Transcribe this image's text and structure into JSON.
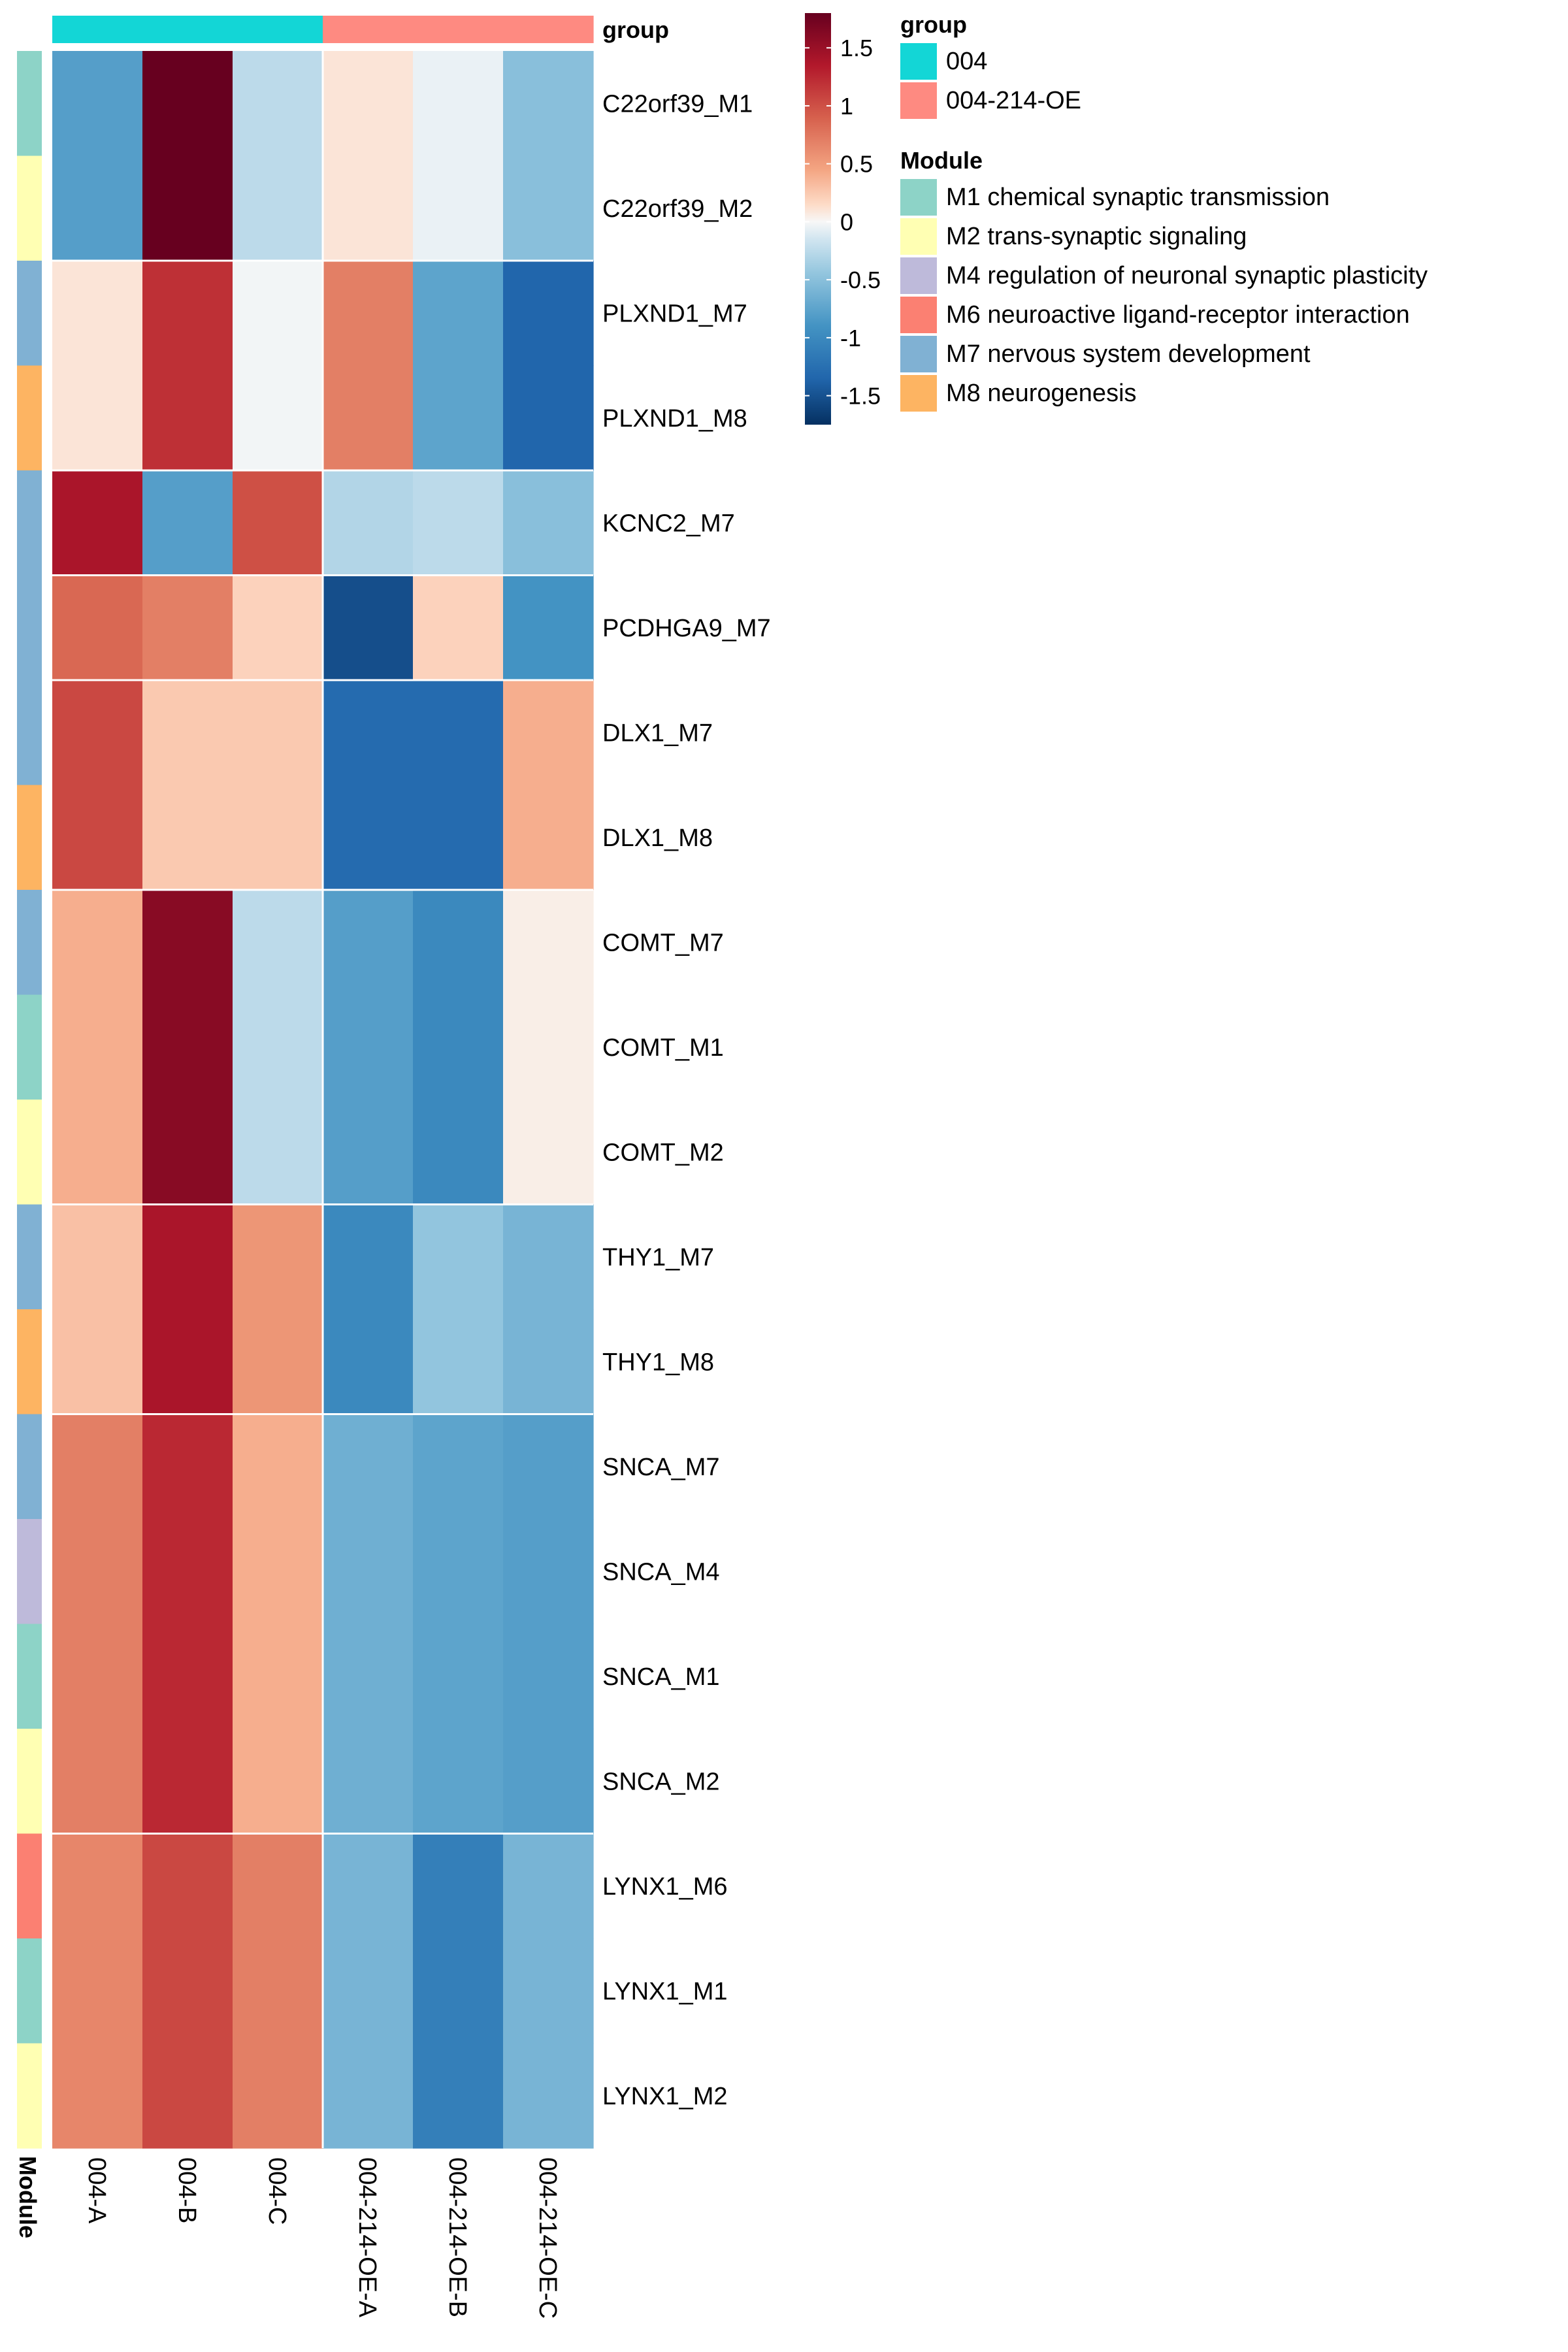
{
  "chart_data": {
    "type": "heatmap",
    "title": "",
    "color_scale": {
      "min": -1.75,
      "max": 1.8,
      "ticks": [
        1.5,
        1,
        0.5,
        0,
        -0.5,
        -1,
        -1.5
      ],
      "tick_labels": [
        "1.5",
        "1",
        "0.5",
        "0",
        "-0.5",
        "-1",
        "-1.5"
      ],
      "stops": [
        {
          "v": -1.8,
          "color": "#053061"
        },
        {
          "v": -1.35,
          "color": "#2166ac"
        },
        {
          "v": -0.9,
          "color": "#4393c3"
        },
        {
          "v": -0.45,
          "color": "#92c5de"
        },
        {
          "v": -0.15,
          "color": "#d1e5f0"
        },
        {
          "v": 0,
          "color": "#f7f7f7"
        },
        {
          "v": 0.15,
          "color": "#fddbc7"
        },
        {
          "v": 0.45,
          "color": "#f4a582"
        },
        {
          "v": 0.9,
          "color": "#d6604d"
        },
        {
          "v": 1.35,
          "color": "#b2182b"
        },
        {
          "v": 1.8,
          "color": "#67001f"
        }
      ]
    },
    "columns": [
      "004-A",
      "004-B",
      "004-C",
      "004-214-OE-A",
      "004-214-OE-B",
      "004-214-OE-C"
    ],
    "column_groups": [
      "004",
      "004",
      "004",
      "004-214-OE",
      "004-214-OE",
      "004-214-OE"
    ],
    "rows": [
      {
        "label": "C22orf39_M1",
        "module": "M1",
        "values": [
          -0.8,
          1.85,
          -0.25,
          0.1,
          -0.05,
          -0.5
        ]
      },
      {
        "label": "C22orf39_M2",
        "module": "M2",
        "values": [
          -0.8,
          1.85,
          -0.25,
          0.1,
          -0.05,
          -0.5
        ]
      },
      {
        "label": "PLXND1_M7",
        "module": "M7",
        "values": [
          0.1,
          1.2,
          -0.02,
          0.7,
          -0.75,
          -1.35
        ]
      },
      {
        "label": "PLXND1_M8",
        "module": "M8",
        "values": [
          0.1,
          1.2,
          -0.02,
          0.7,
          -0.75,
          -1.35
        ]
      },
      {
        "label": "KCNC2_M7",
        "module": "M7",
        "values": [
          1.4,
          -0.8,
          1.0,
          -0.3,
          -0.25,
          -0.5
        ]
      },
      {
        "label": "PCDHGA9_M7",
        "module": "M7",
        "values": [
          0.85,
          0.7,
          0.2,
          -1.55,
          0.2,
          -0.9
        ]
      },
      {
        "label": "DLX1_M7",
        "module": "M7",
        "values": [
          1.05,
          0.25,
          0.25,
          -1.3,
          -1.3,
          0.4
        ]
      },
      {
        "label": "DLX1_M8",
        "module": "M8",
        "values": [
          1.05,
          0.25,
          0.25,
          -1.3,
          -1.3,
          0.4
        ]
      },
      {
        "label": "COMT_M7",
        "module": "M7",
        "values": [
          0.4,
          1.6,
          -0.25,
          -0.8,
          -1.0,
          0.05
        ]
      },
      {
        "label": "COMT_M1",
        "module": "M1",
        "values": [
          0.4,
          1.6,
          -0.25,
          -0.8,
          -1.0,
          0.05
        ]
      },
      {
        "label": "COMT_M2",
        "module": "M2",
        "values": [
          0.4,
          1.6,
          -0.25,
          -0.8,
          -1.0,
          0.05
        ]
      },
      {
        "label": "THY1_M7",
        "module": "M7",
        "values": [
          0.3,
          1.4,
          0.55,
          -1.0,
          -0.45,
          -0.6
        ]
      },
      {
        "label": "THY1_M8",
        "module": "M8",
        "values": [
          0.3,
          1.4,
          0.55,
          -1.0,
          -0.45,
          -0.6
        ]
      },
      {
        "label": "SNCA_M7",
        "module": "M7",
        "values": [
          0.7,
          1.25,
          0.4,
          -0.65,
          -0.75,
          -0.8
        ]
      },
      {
        "label": "SNCA_M4",
        "module": "M4",
        "values": [
          0.7,
          1.25,
          0.4,
          -0.65,
          -0.75,
          -0.8
        ]
      },
      {
        "label": "SNCA_M1",
        "module": "M1",
        "values": [
          0.7,
          1.25,
          0.4,
          -0.65,
          -0.75,
          -0.8
        ]
      },
      {
        "label": "SNCA_M2",
        "module": "M2",
        "values": [
          0.7,
          1.25,
          0.4,
          -0.65,
          -0.75,
          -0.8
        ]
      },
      {
        "label": "LYNX1_M6",
        "module": "M6",
        "values": [
          0.65,
          1.05,
          0.7,
          -0.6,
          -1.1,
          -0.6
        ]
      },
      {
        "label": "LYNX1_M1",
        "module": "M1",
        "values": [
          0.65,
          1.05,
          0.7,
          -0.6,
          -1.1,
          -0.6
        ]
      },
      {
        "label": "LYNX1_M2",
        "module": "M2",
        "values": [
          0.65,
          1.05,
          0.7,
          -0.6,
          -1.1,
          -0.6
        ]
      }
    ],
    "row_separators_after": [
      1,
      3,
      4,
      5,
      7,
      10,
      12,
      16
    ],
    "column_separators_after": [
      2
    ],
    "group_annotation_title": "group",
    "module_annotation_title": "Module",
    "legend": {
      "group": {
        "title": "group",
        "items": [
          {
            "key": "004",
            "label": "004",
            "color": "#13d6d6"
          },
          {
            "key": "004-214-OE",
            "label": "004-214-OE",
            "color": "#fe8a81"
          }
        ]
      },
      "module": {
        "title": "Module",
        "items": [
          {
            "key": "M1",
            "label": "M1 chemical synaptic transmission",
            "color": "#8dd3c7"
          },
          {
            "key": "M2",
            "label": "M2 trans-synaptic signaling",
            "color": "#ffffb3"
          },
          {
            "key": "M4",
            "label": "M4 regulation of neuronal synaptic plasticity",
            "color": "#bebada"
          },
          {
            "key": "M6",
            "label": "M6 neuroactive ligand-receptor interaction",
            "color": "#fb8072"
          },
          {
            "key": "M7",
            "label": "M7 nervous system development",
            "color": "#80b1d3"
          },
          {
            "key": "M8",
            "label": "M8 neurogenesis",
            "color": "#fdb462"
          }
        ]
      }
    }
  }
}
